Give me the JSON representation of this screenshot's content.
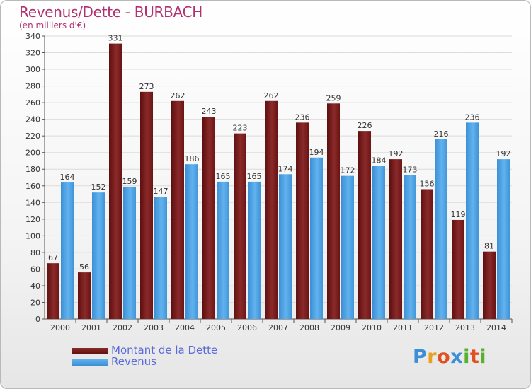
{
  "header": {
    "title": "Revenus/Dette - BURBACH",
    "subtitle": "(en milliers d'€)"
  },
  "chart_data": {
    "type": "bar",
    "categories": [
      "2000",
      "2001",
      "2002",
      "2003",
      "2004",
      "2005",
      "2006",
      "2007",
      "2008",
      "2009",
      "2010",
      "2011",
      "2012",
      "2013",
      "2014"
    ],
    "series": [
      {
        "name": "Montant de la Dette",
        "values": [
          67,
          56,
          331,
          273,
          262,
          243,
          223,
          262,
          236,
          259,
          226,
          192,
          156,
          119,
          81
        ],
        "color": "#7a1e1e"
      },
      {
        "name": "Revenus",
        "values": [
          164,
          152,
          159,
          147,
          186,
          165,
          165,
          174,
          194,
          172,
          184,
          173,
          216,
          236,
          192
        ],
        "color": "#4a9ee0"
      }
    ],
    "ylim": [
      0,
      340
    ],
    "ytick_step": 20,
    "grid": true,
    "legend_position": "bottom-left"
  },
  "logo": {
    "letters": [
      "P",
      "r",
      "o",
      "x",
      "i",
      "t",
      "i"
    ],
    "colors": [
      "#3a8fd6",
      "#e8a020",
      "#e05020",
      "#3a8fd6",
      "#58b030",
      "#e05020",
      "#58b030"
    ]
  }
}
